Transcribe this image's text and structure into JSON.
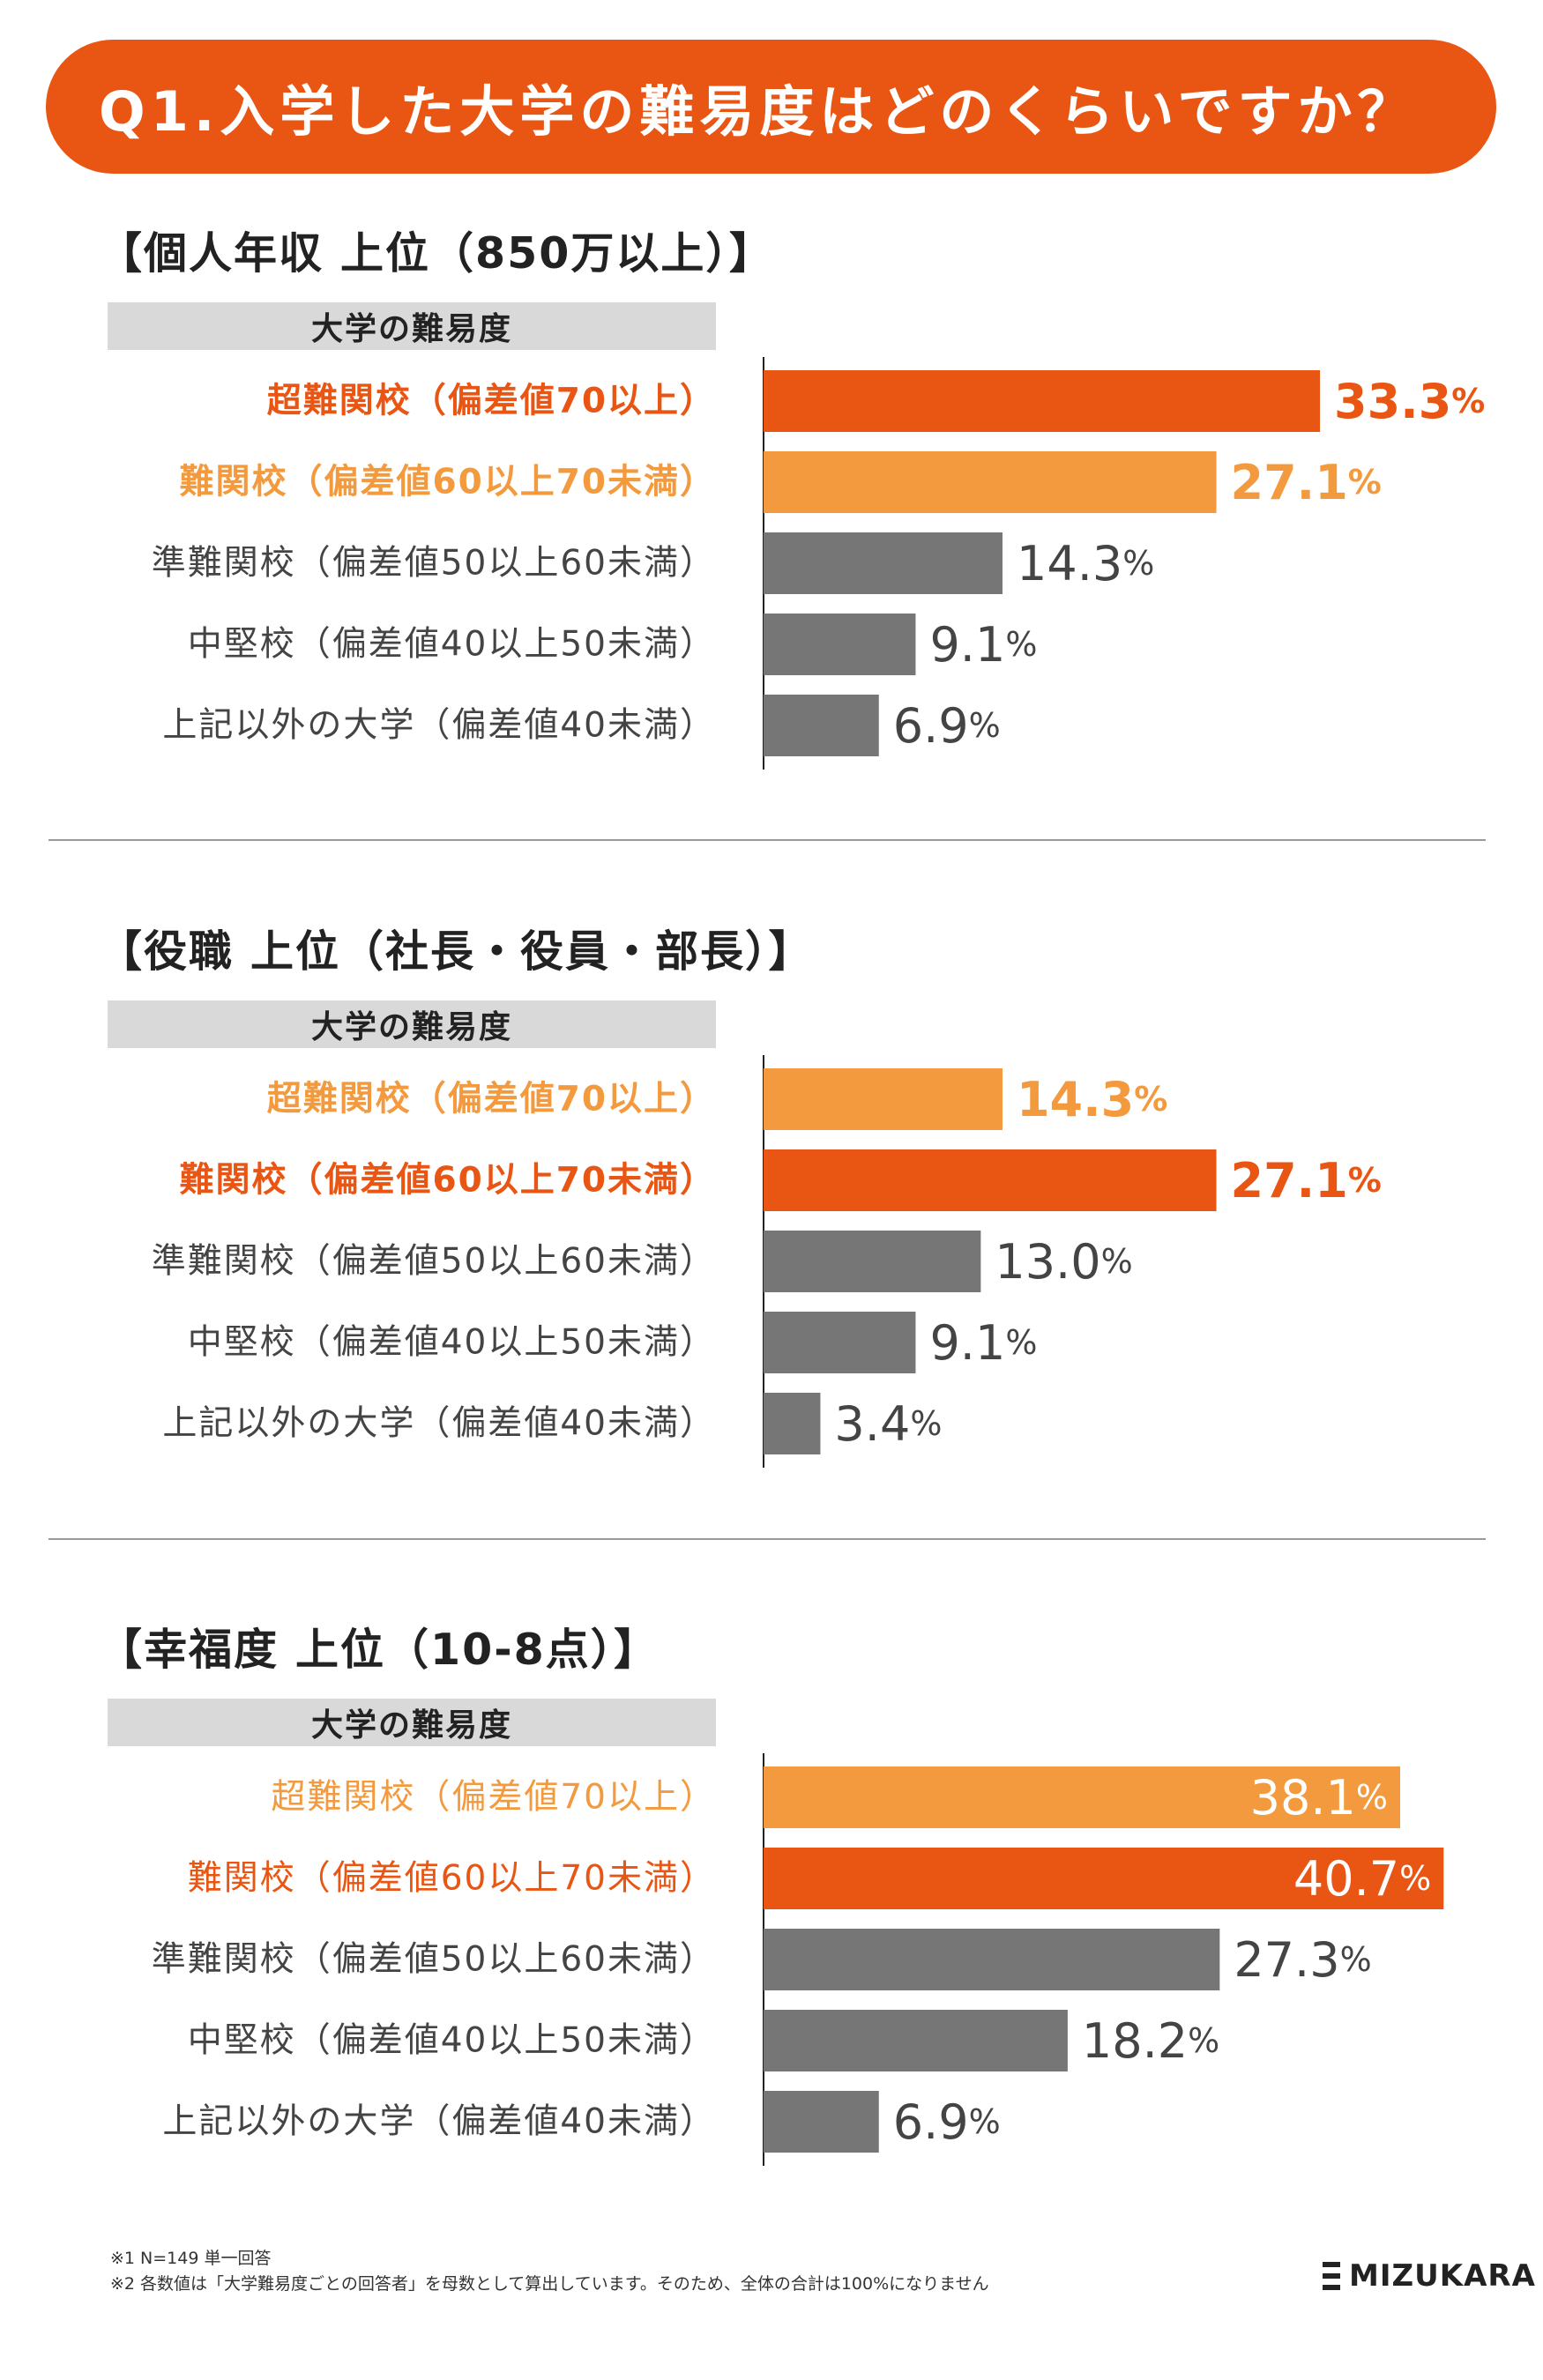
{
  "title": "Q1.入学した大学の難易度はどのくらいですか？",
  "column_header": "大学の難易度",
  "chart_data": [
    {
      "type": "bar",
      "title": "【個人年収 上位（850万以上）】",
      "categories": [
        "超難関校（偏差値70以上）",
        "難関校（偏差値60以上70未満）",
        "準難関校（偏差値50以上60未満）",
        "中堅校（偏差値40以上50未満）",
        "上記以外の大学（偏差値40未満）"
      ],
      "values": [
        33.3,
        27.1,
        14.3,
        9.1,
        6.9
      ],
      "colors": [
        "#e95513",
        "#f39a3e",
        "#767676",
        "#767676",
        "#767676"
      ],
      "label_colors": [
        "#e95513",
        "#f39a3e",
        "#444444",
        "#444444",
        "#444444"
      ],
      "label_bold": [
        true,
        true,
        false,
        false,
        false
      ],
      "unit": "%",
      "xlim": [
        0,
        45
      ]
    },
    {
      "type": "bar",
      "title": "【役職 上位（社長・役員・部長）】",
      "categories": [
        "超難関校（偏差値70以上）",
        "難関校（偏差値60以上70未満）",
        "準難関校（偏差値50以上60未満）",
        "中堅校（偏差値40以上50未満）",
        "上記以外の大学（偏差値40未満）"
      ],
      "values": [
        14.3,
        27.1,
        13.0,
        9.1,
        3.4
      ],
      "colors": [
        "#f39a3e",
        "#e95513",
        "#767676",
        "#767676",
        "#767676"
      ],
      "label_colors": [
        "#f39a3e",
        "#e95513",
        "#444444",
        "#444444",
        "#444444"
      ],
      "label_bold": [
        true,
        true,
        false,
        false,
        false
      ],
      "unit": "%",
      "xlim": [
        0,
        45
      ]
    },
    {
      "type": "bar",
      "title": "【幸福度 上位（10-8点）】",
      "categories": [
        "超難関校（偏差値70以上）",
        "難関校（偏差値60以上70未満）",
        "準難関校（偏差値50以上60未満）",
        "中堅校（偏差値40以上50未満）",
        "上記以外の大学（偏差値40未満）"
      ],
      "values": [
        38.1,
        40.7,
        27.3,
        18.2,
        6.9
      ],
      "colors": [
        "#f39a3e",
        "#e95513",
        "#767676",
        "#767676",
        "#767676"
      ],
      "label_colors": [
        "#f39a3e",
        "#e95513",
        "#444444",
        "#444444",
        "#444444"
      ],
      "label_bold": [
        false,
        false,
        false,
        false,
        false
      ],
      "unit": "%",
      "xlim": [
        0,
        45
      ]
    }
  ],
  "footnotes": [
    "※1 N=149 単一回答",
    "※2 各数値は「大学難易度ごとの回答者」を母数として算出しています。そのため、全体の合計は100%になりません"
  ],
  "brand": "MIZUKARA"
}
